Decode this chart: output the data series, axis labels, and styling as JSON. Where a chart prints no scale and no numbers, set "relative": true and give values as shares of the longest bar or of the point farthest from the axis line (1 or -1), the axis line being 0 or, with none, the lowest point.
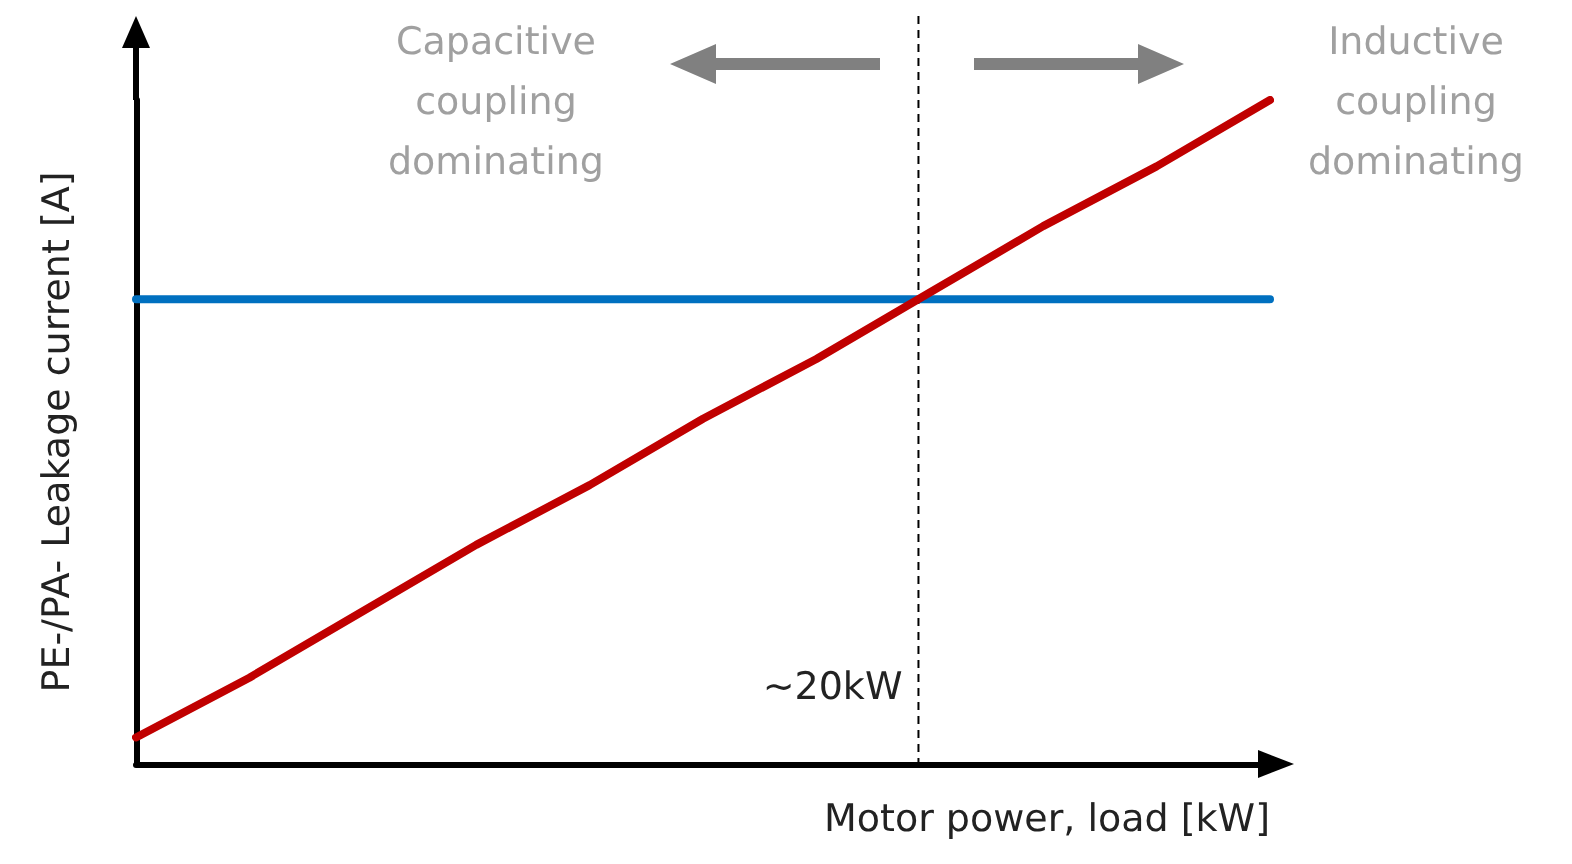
{
  "chart_data": {
    "type": "line",
    "relative": true,
    "xlabel": "Motor power, load [kW]",
    "ylabel": "PE-/PA- Leakage current [A]",
    "categories": [
      null,
      null,
      null,
      null,
      null,
      null,
      null,
      null,
      null,
      null,
      null
    ],
    "series": [
      {
        "color": "#0070c0",
        "values": [
          0.7,
          0.7,
          0.7,
          0.7,
          0.7,
          0.7,
          0.7,
          0.7,
          0.7,
          0.7,
          0.7
        ]
      },
      {
        "color": "#c00000",
        "values": [
          0.04,
          0.13,
          0.23,
          0.33,
          0.42,
          0.52,
          0.61,
          0.71,
          0.81,
          0.9,
          1
        ]
      }
    ],
    "annotations": [
      "Capacitive\ncoupling\ndominating",
      "Inductive\ncoupling\ndominating",
      "~20kW"
    ],
    "grid": false,
    "marker": "none",
    "line_style": "solid"
  }
}
